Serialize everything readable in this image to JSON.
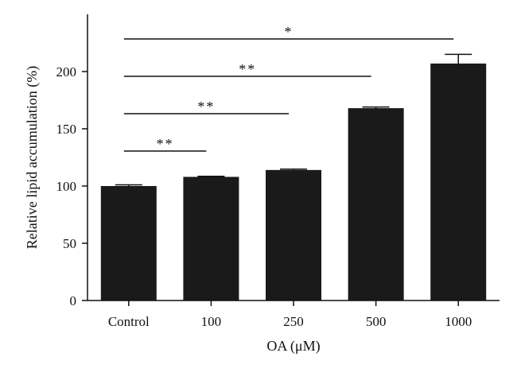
{
  "chart_data": {
    "type": "bar",
    "categories": [
      "Control",
      "100",
      "250",
      "500",
      "1000"
    ],
    "values": [
      100,
      108,
      114,
      168,
      207
    ],
    "errors": [
      1,
      0.5,
      0.8,
      1,
      8
    ],
    "xlabel": "OA (μM)",
    "ylabel": "Relative lipid accumulation (%)",
    "ylim": [
      0,
      250
    ],
    "yticks": [
      0,
      50,
      100,
      150,
      200
    ],
    "grid": false,
    "bar_color": "#1a1a1a",
    "significance": [
      {
        "from": "Control",
        "to": "100",
        "label": "**"
      },
      {
        "from": "Control",
        "to": "250",
        "label": "**"
      },
      {
        "from": "Control",
        "to": "500",
        "label": "**"
      },
      {
        "from": "Control",
        "to": "1000",
        "label": "*"
      }
    ]
  }
}
